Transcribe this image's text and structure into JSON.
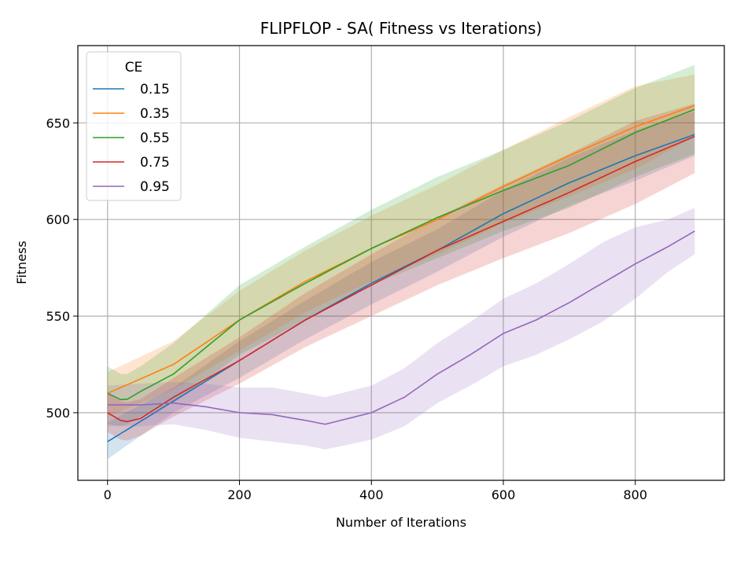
{
  "chart_data": {
    "type": "line",
    "title": "FLIPFLOP - SA( Fitness vs Iterations)",
    "xlabel": "Number of Iterations",
    "ylabel": "Fitness",
    "xlim": [
      -45,
      935
    ],
    "ylim": [
      465,
      690
    ],
    "xticks": [
      0,
      200,
      400,
      600,
      800
    ],
    "yticks": [
      500,
      550,
      600,
      650
    ],
    "grid": true,
    "legend": {
      "title": "CE",
      "placement": "top-left"
    },
    "band_opacity": 0.2,
    "series": [
      {
        "name": "0.15",
        "color": "#1f77b4",
        "points": [
          [
            0,
            485
          ],
          [
            100,
            506
          ],
          [
            200,
            527
          ],
          [
            300,
            548
          ],
          [
            400,
            567
          ],
          [
            500,
            584
          ],
          [
            600,
            603
          ],
          [
            700,
            619
          ],
          [
            800,
            633
          ],
          [
            890,
            644
          ]
        ],
        "band": [
          [
            0,
            476,
            495
          ],
          [
            100,
            500,
            513
          ],
          [
            200,
            518,
            537
          ],
          [
            300,
            538,
            558
          ],
          [
            400,
            556,
            578
          ],
          [
            500,
            573,
            595
          ],
          [
            600,
            591,
            615
          ],
          [
            700,
            607,
            632
          ],
          [
            800,
            620,
            646
          ],
          [
            890,
            633,
            656
          ]
        ]
      },
      {
        "name": "0.35",
        "color": "#ff7f0e",
        "points": [
          [
            0,
            510
          ],
          [
            100,
            525
          ],
          [
            200,
            548
          ],
          [
            300,
            568
          ],
          [
            400,
            585
          ],
          [
            500,
            600
          ],
          [
            600,
            617
          ],
          [
            700,
            633
          ],
          [
            800,
            648
          ],
          [
            890,
            659
          ]
        ],
        "band": [
          [
            0,
            498,
            521
          ],
          [
            100,
            512,
            537
          ],
          [
            200,
            532,
            563
          ],
          [
            300,
            552,
            584
          ],
          [
            400,
            568,
            602
          ],
          [
            500,
            582,
            618
          ],
          [
            600,
            598,
            636
          ],
          [
            700,
            612,
            653
          ],
          [
            800,
            626,
            669
          ],
          [
            890,
            643,
            675
          ]
        ]
      },
      {
        "name": "0.55",
        "color": "#2ca02c",
        "points": [
          [
            0,
            510
          ],
          [
            25,
            506
          ],
          [
            50,
            511
          ],
          [
            100,
            520
          ],
          [
            200,
            548
          ],
          [
            300,
            567
          ],
          [
            400,
            585
          ],
          [
            500,
            601
          ],
          [
            600,
            615
          ],
          [
            700,
            628
          ],
          [
            800,
            645
          ],
          [
            890,
            657
          ]
        ],
        "band": [
          [
            0,
            494,
            524
          ],
          [
            25,
            493,
            519
          ],
          [
            50,
            498,
            524
          ],
          [
            100,
            505,
            536
          ],
          [
            200,
            530,
            566
          ],
          [
            300,
            548,
            586
          ],
          [
            400,
            566,
            605
          ],
          [
            500,
            580,
            622
          ],
          [
            600,
            594,
            636
          ],
          [
            700,
            606,
            651
          ],
          [
            800,
            622,
            668
          ],
          [
            890,
            634,
            680
          ]
        ]
      },
      {
        "name": "0.75",
        "color": "#d62728",
        "points": [
          [
            0,
            500
          ],
          [
            25,
            495
          ],
          [
            50,
            497
          ],
          [
            100,
            508
          ],
          [
            200,
            527
          ],
          [
            300,
            548
          ],
          [
            400,
            566
          ],
          [
            500,
            584
          ],
          [
            600,
            599
          ],
          [
            700,
            614
          ],
          [
            800,
            630
          ],
          [
            890,
            643
          ]
        ],
        "band": [
          [
            0,
            490,
            510
          ],
          [
            25,
            485,
            505
          ],
          [
            50,
            488,
            507
          ],
          [
            100,
            498,
            518
          ],
          [
            200,
            515,
            539
          ],
          [
            300,
            534,
            562
          ],
          [
            400,
            550,
            582
          ],
          [
            500,
            566,
            601
          ],
          [
            600,
            580,
            618
          ],
          [
            700,
            593,
            634
          ],
          [
            800,
            608,
            651
          ],
          [
            890,
            624,
            660
          ]
        ]
      },
      {
        "name": "0.95",
        "color": "#9467bd",
        "points": [
          [
            0,
            504
          ],
          [
            50,
            504
          ],
          [
            100,
            505
          ],
          [
            150,
            503
          ],
          [
            200,
            500
          ],
          [
            250,
            499
          ],
          [
            300,
            496
          ],
          [
            330,
            494
          ],
          [
            400,
            500
          ],
          [
            450,
            508
          ],
          [
            500,
            520
          ],
          [
            550,
            530
          ],
          [
            600,
            541
          ],
          [
            650,
            548
          ],
          [
            700,
            557
          ],
          [
            750,
            567
          ],
          [
            800,
            577
          ],
          [
            850,
            586
          ],
          [
            890,
            594
          ]
        ],
        "band": [
          [
            0,
            493,
            514
          ],
          [
            50,
            493,
            515
          ],
          [
            100,
            494,
            516
          ],
          [
            150,
            491,
            515
          ],
          [
            200,
            487,
            513
          ],
          [
            250,
            485,
            513
          ],
          [
            300,
            483,
            510
          ],
          [
            330,
            481,
            508
          ],
          [
            400,
            486,
            514
          ],
          [
            450,
            493,
            523
          ],
          [
            500,
            505,
            536
          ],
          [
            550,
            514,
            547
          ],
          [
            600,
            524,
            559
          ],
          [
            650,
            530,
            567
          ],
          [
            700,
            538,
            577
          ],
          [
            750,
            547,
            588
          ],
          [
            800,
            559,
            596
          ],
          [
            850,
            573,
            600
          ],
          [
            890,
            582,
            606
          ]
        ]
      }
    ]
  }
}
